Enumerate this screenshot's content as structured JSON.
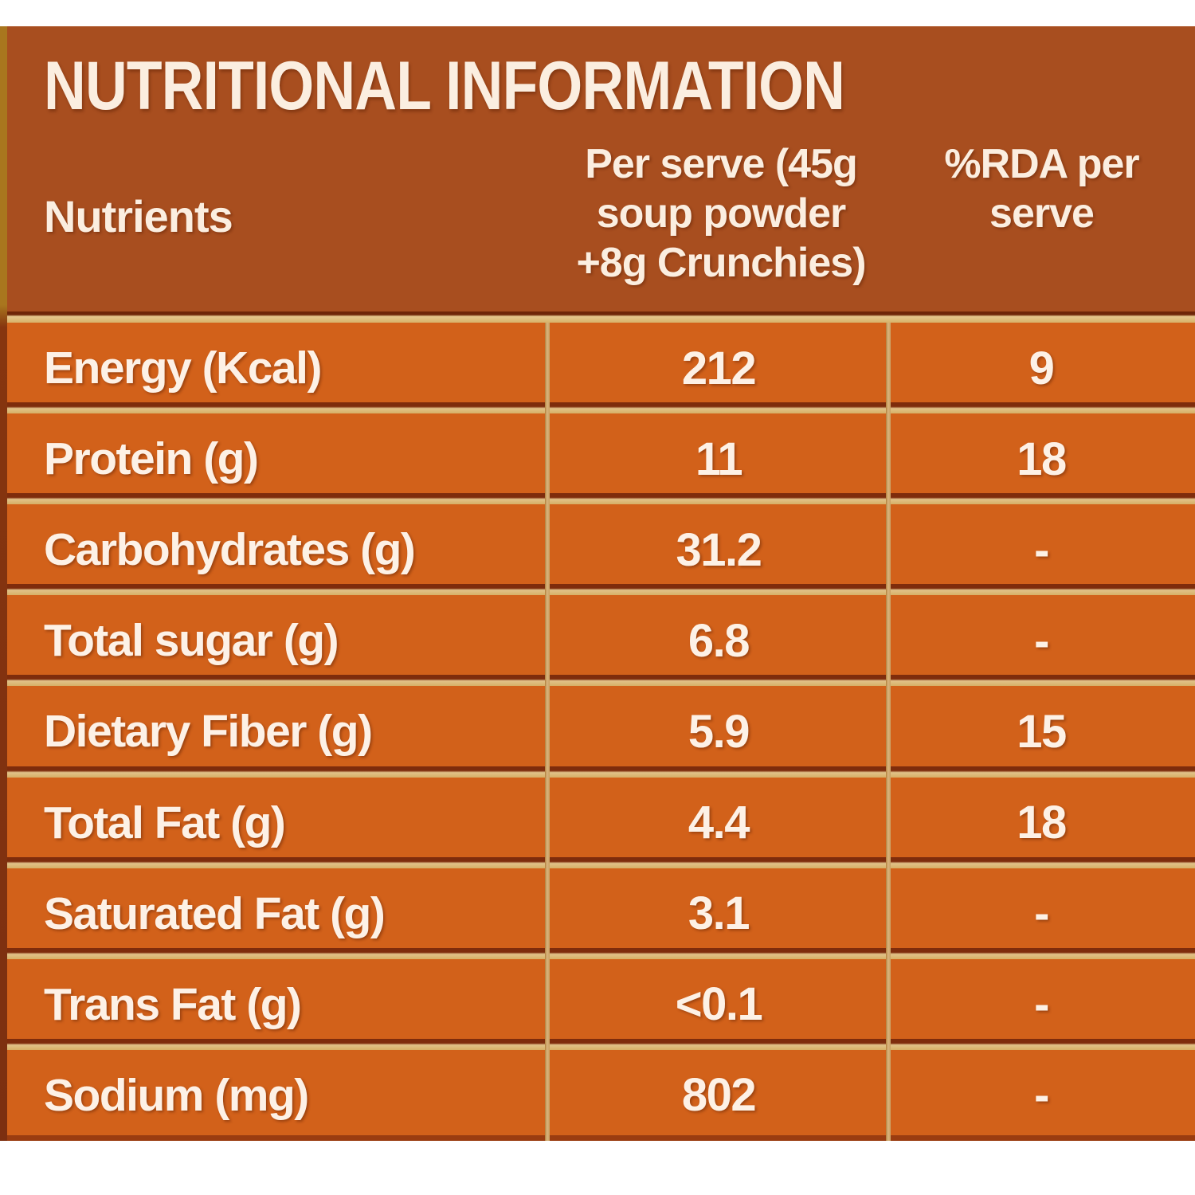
{
  "table": {
    "title": "NUTRITIONAL INFORMATION",
    "columns": {
      "nutrients": "Nutrients",
      "per_serve_lines": [
        "Per serve (45g",
        "soup powder",
        "+8g Crunchies)"
      ],
      "rda_lines": [
        "%RDA per",
        "serve"
      ]
    },
    "rows": [
      {
        "nutrient": "Energy (Kcal)",
        "per_serve": "212",
        "rda": "9"
      },
      {
        "nutrient": "Protein (g)",
        "per_serve": "11",
        "rda": "18"
      },
      {
        "nutrient": "Carbohydrates (g)",
        "per_serve": "31.2",
        "rda": "-"
      },
      {
        "nutrient": "Total sugar (g)",
        "per_serve": "6.8",
        "rda": "-"
      },
      {
        "nutrient": "Dietary Fiber (g)",
        "per_serve": "5.9",
        "rda": "15"
      },
      {
        "nutrient": "Total Fat (g)",
        "per_serve": "4.4",
        "rda": "18"
      },
      {
        "nutrient": "Saturated Fat (g)",
        "per_serve": "3.1",
        "rda": "-"
      },
      {
        "nutrient": "Trans Fat (g)",
        "per_serve": "<0.1",
        "rda": "-"
      },
      {
        "nutrient": "Sodium (mg)",
        "per_serve": "802",
        "rda": "-"
      }
    ],
    "colors": {
      "header_bg": "#a84e1f",
      "body_bg": "#d2611a",
      "separator_gold": "#d8b269",
      "separator_dark": "#7e2c0c",
      "left_border_gold": "#a9761e",
      "text": "#fdf1e6",
      "page_bg": "#ffffff"
    }
  }
}
